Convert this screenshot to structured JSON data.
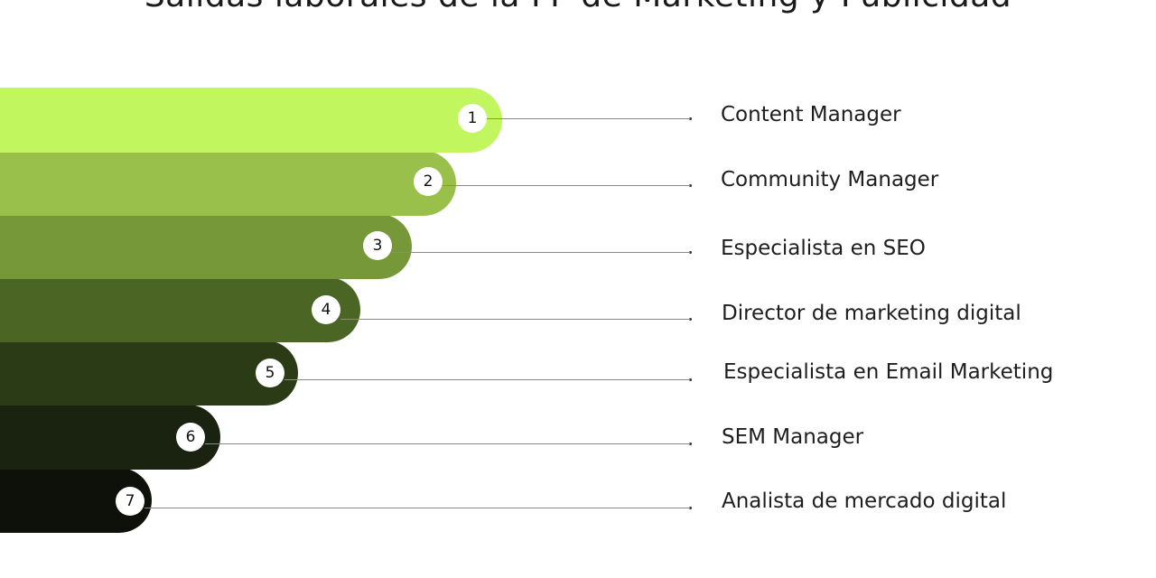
{
  "title": "Salidas laborales de la FP de Marketing y Publicidad",
  "steps": [
    {
      "number": "1",
      "label": "Content Manager",
      "color": "#c1f65f"
    },
    {
      "number": "2",
      "label": "Community Manager",
      "color": "#98c04a"
    },
    {
      "number": "3",
      "label": "Especialista en SEO",
      "color": "#769838"
    },
    {
      "number": "4",
      "label": "Director de marketing digital",
      "color": "#4b6524"
    },
    {
      "number": "5",
      "label": "Especialista en Email Marketing",
      "color": "#2a3b16"
    },
    {
      "number": "6",
      "label": "SEM Manager",
      "color": "#1a2210"
    },
    {
      "number": "7",
      "label": "Analista de mercado digital",
      "color": "#0d110a"
    }
  ]
}
